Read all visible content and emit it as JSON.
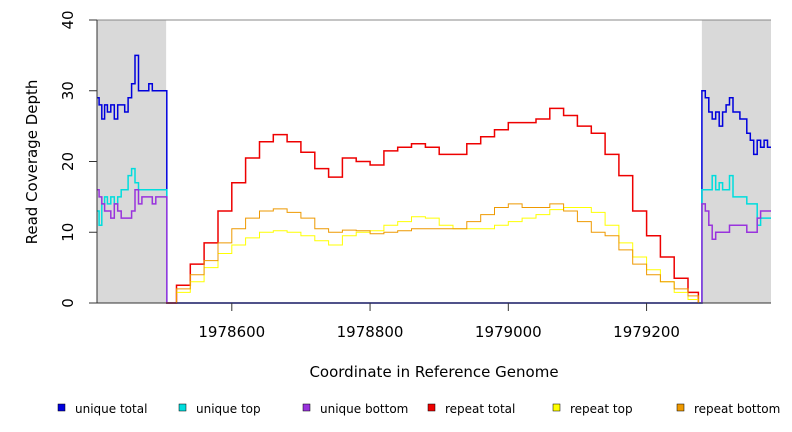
{
  "chart_data": {
    "type": "line",
    "title": "",
    "xlabel": "Coordinate in Reference Genome",
    "ylabel": "Read Coverage Depth",
    "xlim": [
      1978405,
      1979380
    ],
    "ylim": [
      0,
      40
    ],
    "x_ticks": [
      1978600,
      1978800,
      1979000,
      1979200
    ],
    "x_tick_labels": [
      "1978600",
      "1978800",
      "1979000",
      "1979200"
    ],
    "y_ticks": [
      0,
      10,
      20,
      30,
      40
    ],
    "y_tick_labels": [
      "0",
      "10",
      "20",
      "30",
      "40"
    ],
    "shaded_regions": [
      [
        1978405,
        1978505
      ],
      [
        1979280,
        1979380
      ]
    ],
    "legend_position": "bottom",
    "series": [
      {
        "name": "unique total",
        "color": "#0000dd",
        "x": [
          1978405,
          1978408,
          1978412,
          1978416,
          1978420,
          1978425,
          1978430,
          1978435,
          1978440,
          1978445,
          1978450,
          1978455,
          1978460,
          1978465,
          1978470,
          1978475,
          1978480,
          1978485,
          1978490,
          1978495,
          1978500,
          1978505,
          1978506,
          1978507,
          1979278,
          1979279,
          1979280,
          1979285,
          1979290,
          1979295,
          1979300,
          1979305,
          1979310,
          1979315,
          1979320,
          1979325,
          1979330,
          1979335,
          1979340,
          1979345,
          1979350,
          1979355,
          1979360,
          1979365,
          1979370,
          1979375,
          1979380
        ],
        "values": [
          29,
          28,
          26,
          28,
          27,
          28,
          26,
          28,
          28,
          27,
          29,
          31,
          35,
          30,
          30,
          30,
          31,
          30,
          30,
          30,
          30,
          30,
          0,
          0,
          0,
          0,
          30,
          29,
          27,
          26,
          27,
          25,
          27,
          28,
          29,
          27,
          27,
          26,
          26,
          24,
          23,
          21,
          23,
          22,
          23,
          22,
          22
        ]
      },
      {
        "name": "unique top",
        "color": "#00dddd",
        "x": [
          1978405,
          1978408,
          1978412,
          1978416,
          1978420,
          1978425,
          1978430,
          1978435,
          1978440,
          1978445,
          1978450,
          1978455,
          1978460,
          1978465,
          1978470,
          1978475,
          1978480,
          1978485,
          1978490,
          1978495,
          1978500,
          1978505,
          1978506,
          1978507,
          1979278,
          1979279,
          1979280,
          1979285,
          1979290,
          1979295,
          1979300,
          1979305,
          1979310,
          1979315,
          1979320,
          1979325,
          1979330,
          1979335,
          1979340,
          1979345,
          1979350,
          1979355,
          1979360,
          1979365,
          1979370,
          1979375,
          1979380
        ],
        "values": [
          13,
          11,
          14,
          15,
          14,
          15,
          14,
          15,
          16,
          16,
          18,
          19,
          17,
          16,
          16,
          16,
          16,
          16,
          16,
          16,
          16,
          16,
          0,
          0,
          0,
          0,
          16,
          16,
          16,
          18,
          16,
          17,
          16,
          16,
          18,
          15,
          15,
          15,
          15,
          14,
          14,
          14,
          11,
          12,
          12,
          12,
          12
        ]
      },
      {
        "name": "unique bottom",
        "color": "#9933dd",
        "x": [
          1978405,
          1978408,
          1978412,
          1978416,
          1978420,
          1978425,
          1978430,
          1978435,
          1978440,
          1978445,
          1978450,
          1978455,
          1978460,
          1978465,
          1978470,
          1978475,
          1978480,
          1978485,
          1978490,
          1978495,
          1978500,
          1978505,
          1978506,
          1978507,
          1979278,
          1979279,
          1979280,
          1979285,
          1979290,
          1979295,
          1979300,
          1979305,
          1979310,
          1979315,
          1979320,
          1979325,
          1979330,
          1979335,
          1979340,
          1979345,
          1979350,
          1979355,
          1979360,
          1979365,
          1979370,
          1979375,
          1979380
        ],
        "values": [
          16,
          15,
          14,
          13,
          13,
          12,
          14,
          13,
          12,
          12,
          12,
          13,
          16,
          14,
          15,
          15,
          15,
          14,
          15,
          15,
          15,
          15,
          0,
          0,
          0,
          0,
          14,
          13,
          11,
          9,
          10,
          10,
          10,
          10,
          11,
          11,
          11,
          11,
          11,
          10,
          10,
          10,
          12,
          13,
          13,
          13,
          13
        ]
      },
      {
        "name": "repeat total",
        "color": "#ee0000",
        "x": [
          1978505,
          1978520,
          1978540,
          1978560,
          1978580,
          1978600,
          1978620,
          1978640,
          1978660,
          1978680,
          1978700,
          1978720,
          1978740,
          1978760,
          1978780,
          1978800,
          1978820,
          1978840,
          1978860,
          1978880,
          1978900,
          1978920,
          1978940,
          1978960,
          1978980,
          1979000,
          1979020,
          1979040,
          1979060,
          1979080,
          1979100,
          1979120,
          1979140,
          1979160,
          1979180,
          1979200,
          1979220,
          1979240,
          1979260,
          1979275
        ],
        "values": [
          0,
          2.5,
          5.5,
          8.5,
          13,
          17,
          20.5,
          22.8,
          23.8,
          22.8,
          21.3,
          19,
          17.8,
          20.5,
          20,
          19.5,
          21.5,
          22,
          22.5,
          22,
          21,
          21,
          22.5,
          23.5,
          24.5,
          25.5,
          25.5,
          26,
          27.5,
          26.5,
          25,
          24,
          21,
          18,
          13,
          9.5,
          6.5,
          3.5,
          1.5,
          0
        ]
      },
      {
        "name": "repeat top",
        "color": "#ffff00",
        "x": [
          1978505,
          1978520,
          1978540,
          1978560,
          1978580,
          1978600,
          1978620,
          1978640,
          1978660,
          1978680,
          1978700,
          1978720,
          1978740,
          1978760,
          1978780,
          1978800,
          1978820,
          1978840,
          1978860,
          1978880,
          1978900,
          1978920,
          1978940,
          1978960,
          1978980,
          1979000,
          1979020,
          1979040,
          1979060,
          1979080,
          1979100,
          1979120,
          1979140,
          1979160,
          1979180,
          1979200,
          1979220,
          1979240,
          1979260,
          1979275
        ],
        "values": [
          0,
          1.5,
          3,
          5,
          7,
          8.2,
          9.2,
          10,
          10.2,
          10,
          9.5,
          8.8,
          8.2,
          9.5,
          10,
          10.2,
          11,
          11.5,
          12.2,
          12,
          11,
          10.5,
          10.5,
          10.5,
          11,
          11.5,
          12,
          12.5,
          13.2,
          13.5,
          13.5,
          12.8,
          11,
          8.5,
          6.5,
          4.7,
          3,
          1.5,
          0.5,
          0
        ]
      },
      {
        "name": "repeat bottom",
        "color": "#ee9900",
        "x": [
          1978505,
          1978520,
          1978540,
          1978560,
          1978580,
          1978600,
          1978620,
          1978640,
          1978660,
          1978680,
          1978700,
          1978720,
          1978740,
          1978760,
          1978780,
          1978800,
          1978820,
          1978840,
          1978860,
          1978880,
          1978900,
          1978920,
          1978940,
          1978960,
          1978980,
          1979000,
          1979020,
          1979040,
          1979060,
          1979080,
          1979100,
          1979120,
          1979140,
          1979160,
          1979180,
          1979200,
          1979220,
          1979240,
          1979260,
          1979275
        ],
        "values": [
          0,
          2,
          4,
          6,
          8.5,
          10.5,
          12,
          13,
          13.3,
          12.8,
          12,
          10.5,
          10,
          10.3,
          10.2,
          9.8,
          10,
          10.2,
          10.5,
          10.5,
          10.5,
          10.5,
          11.5,
          12.5,
          13.5,
          14,
          13.5,
          13.5,
          14,
          13,
          11.5,
          10,
          9.5,
          7.5,
          5.5,
          4,
          3,
          2,
          1,
          0
        ]
      }
    ]
  }
}
